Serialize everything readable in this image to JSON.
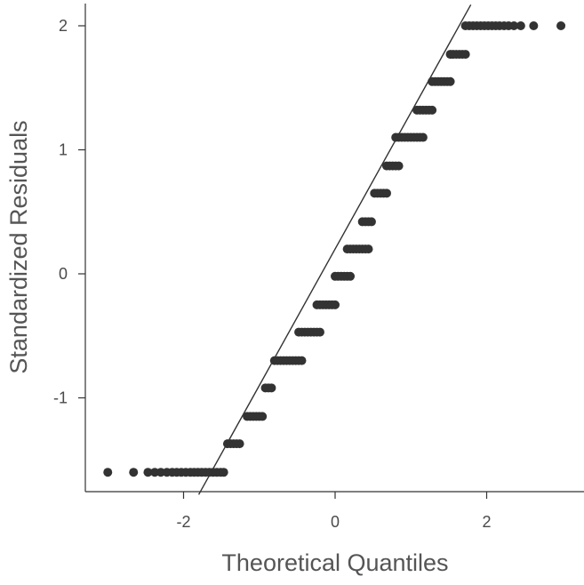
{
  "chart_data": {
    "type": "scatter",
    "title": "",
    "xlabel": "Theoretical Quantiles",
    "ylabel": "Standardized Residuals",
    "xlim": [
      -3.3,
      3.3
    ],
    "ylim": [
      -1.78,
      2.17
    ],
    "x_ticks": [
      {
        "value": -2,
        "label": "-2"
      },
      {
        "value": 0,
        "label": "0"
      },
      {
        "value": 2,
        "label": "2"
      }
    ],
    "y_ticks": [
      {
        "value": -1,
        "label": "-1"
      },
      {
        "value": 0,
        "label": "0"
      },
      {
        "value": 1,
        "label": "1"
      },
      {
        "value": 2,
        "label": "2"
      }
    ],
    "grid": false,
    "reference_line": {
      "intercept": 0.2,
      "slope": 1.1
    },
    "points_color": "#333333",
    "line_color": "#333333",
    "series": [
      {
        "points": [
          [
            -3.0,
            -1.6
          ],
          [
            -2.66,
            -1.6
          ],
          [
            -2.47,
            -1.6
          ],
          [
            -2.38,
            -1.6
          ],
          [
            -2.3,
            -1.6
          ],
          [
            -2.22,
            -1.6
          ],
          [
            -2.15,
            -1.6
          ],
          [
            -2.09,
            -1.6
          ],
          [
            -2.03,
            -1.6
          ],
          [
            -1.97,
            -1.6
          ],
          [
            -1.91,
            -1.6
          ],
          [
            -1.86,
            -1.6
          ],
          [
            -1.81,
            -1.6
          ],
          [
            -1.76,
            -1.6
          ],
          [
            -1.71,
            -1.6
          ],
          [
            -1.66,
            -1.6
          ],
          [
            -1.61,
            -1.6
          ],
          [
            -1.56,
            -1.6
          ],
          [
            -1.51,
            -1.6
          ],
          [
            -1.47,
            -1.6
          ],
          [
            -1.42,
            -1.37
          ],
          [
            -1.38,
            -1.37
          ],
          [
            -1.34,
            -1.37
          ],
          [
            -1.3,
            -1.37
          ],
          [
            -1.26,
            -1.37
          ],
          [
            -1.16,
            -1.15
          ],
          [
            -1.12,
            -1.15
          ],
          [
            -1.08,
            -1.15
          ],
          [
            -1.04,
            -1.15
          ],
          [
            -1.0,
            -1.15
          ],
          [
            -0.96,
            -1.15
          ],
          [
            -0.92,
            -0.92
          ],
          [
            -0.88,
            -0.92
          ],
          [
            -0.84,
            -0.92
          ],
          [
            -0.8,
            -0.7
          ],
          [
            -0.76,
            -0.7
          ],
          [
            -0.72,
            -0.7
          ],
          [
            -0.68,
            -0.7
          ],
          [
            -0.64,
            -0.7
          ],
          [
            -0.6,
            -0.7
          ],
          [
            -0.56,
            -0.7
          ],
          [
            -0.52,
            -0.7
          ],
          [
            -0.48,
            -0.7
          ],
          [
            -0.44,
            -0.7
          ],
          [
            -0.48,
            -0.47
          ],
          [
            -0.44,
            -0.47
          ],
          [
            -0.4,
            -0.47
          ],
          [
            -0.36,
            -0.47
          ],
          [
            -0.32,
            -0.47
          ],
          [
            -0.28,
            -0.47
          ],
          [
            -0.24,
            -0.47
          ],
          [
            -0.2,
            -0.47
          ],
          [
            -0.24,
            -0.25
          ],
          [
            -0.2,
            -0.25
          ],
          [
            -0.16,
            -0.25
          ],
          [
            -0.12,
            -0.25
          ],
          [
            -0.08,
            -0.25
          ],
          [
            -0.04,
            -0.25
          ],
          [
            0.0,
            -0.25
          ],
          [
            0.0,
            -0.02
          ],
          [
            0.04,
            -0.02
          ],
          [
            0.08,
            -0.02
          ],
          [
            0.12,
            -0.02
          ],
          [
            0.16,
            -0.02
          ],
          [
            0.2,
            -0.02
          ],
          [
            0.16,
            0.2
          ],
          [
            0.2,
            0.2
          ],
          [
            0.24,
            0.2
          ],
          [
            0.28,
            0.2
          ],
          [
            0.32,
            0.2
          ],
          [
            0.36,
            0.2
          ],
          [
            0.4,
            0.2
          ],
          [
            0.44,
            0.2
          ],
          [
            0.36,
            0.42
          ],
          [
            0.4,
            0.42
          ],
          [
            0.44,
            0.42
          ],
          [
            0.48,
            0.42
          ],
          [
            0.52,
            0.65
          ],
          [
            0.56,
            0.65
          ],
          [
            0.6,
            0.65
          ],
          [
            0.64,
            0.65
          ],
          [
            0.68,
            0.65
          ],
          [
            0.68,
            0.87
          ],
          [
            0.72,
            0.87
          ],
          [
            0.76,
            0.87
          ],
          [
            0.8,
            0.87
          ],
          [
            0.84,
            0.87
          ],
          [
            0.8,
            1.1
          ],
          [
            0.84,
            1.1
          ],
          [
            0.88,
            1.1
          ],
          [
            0.92,
            1.1
          ],
          [
            0.96,
            1.1
          ],
          [
            1.0,
            1.1
          ],
          [
            1.04,
            1.1
          ],
          [
            1.08,
            1.1
          ],
          [
            1.12,
            1.1
          ],
          [
            1.16,
            1.1
          ],
          [
            1.08,
            1.32
          ],
          [
            1.12,
            1.32
          ],
          [
            1.16,
            1.32
          ],
          [
            1.2,
            1.32
          ],
          [
            1.24,
            1.32
          ],
          [
            1.28,
            1.32
          ],
          [
            1.28,
            1.55
          ],
          [
            1.32,
            1.55
          ],
          [
            1.36,
            1.55
          ],
          [
            1.4,
            1.55
          ],
          [
            1.44,
            1.55
          ],
          [
            1.48,
            1.55
          ],
          [
            1.52,
            1.55
          ],
          [
            1.52,
            1.77
          ],
          [
            1.56,
            1.77
          ],
          [
            1.6,
            1.77
          ],
          [
            1.64,
            1.77
          ],
          [
            1.68,
            1.77
          ],
          [
            1.72,
            1.77
          ],
          [
            1.72,
            2.0
          ],
          [
            1.77,
            2.0
          ],
          [
            1.82,
            2.0
          ],
          [
            1.87,
            2.0
          ],
          [
            1.92,
            2.0
          ],
          [
            1.97,
            2.0
          ],
          [
            2.02,
            2.0
          ],
          [
            2.07,
            2.0
          ],
          [
            2.12,
            2.0
          ],
          [
            2.17,
            2.0
          ],
          [
            2.23,
            2.0
          ],
          [
            2.29,
            2.0
          ],
          [
            2.36,
            2.0
          ],
          [
            2.45,
            2.0
          ],
          [
            2.62,
            2.0
          ],
          [
            2.98,
            2.0
          ]
        ]
      }
    ]
  }
}
